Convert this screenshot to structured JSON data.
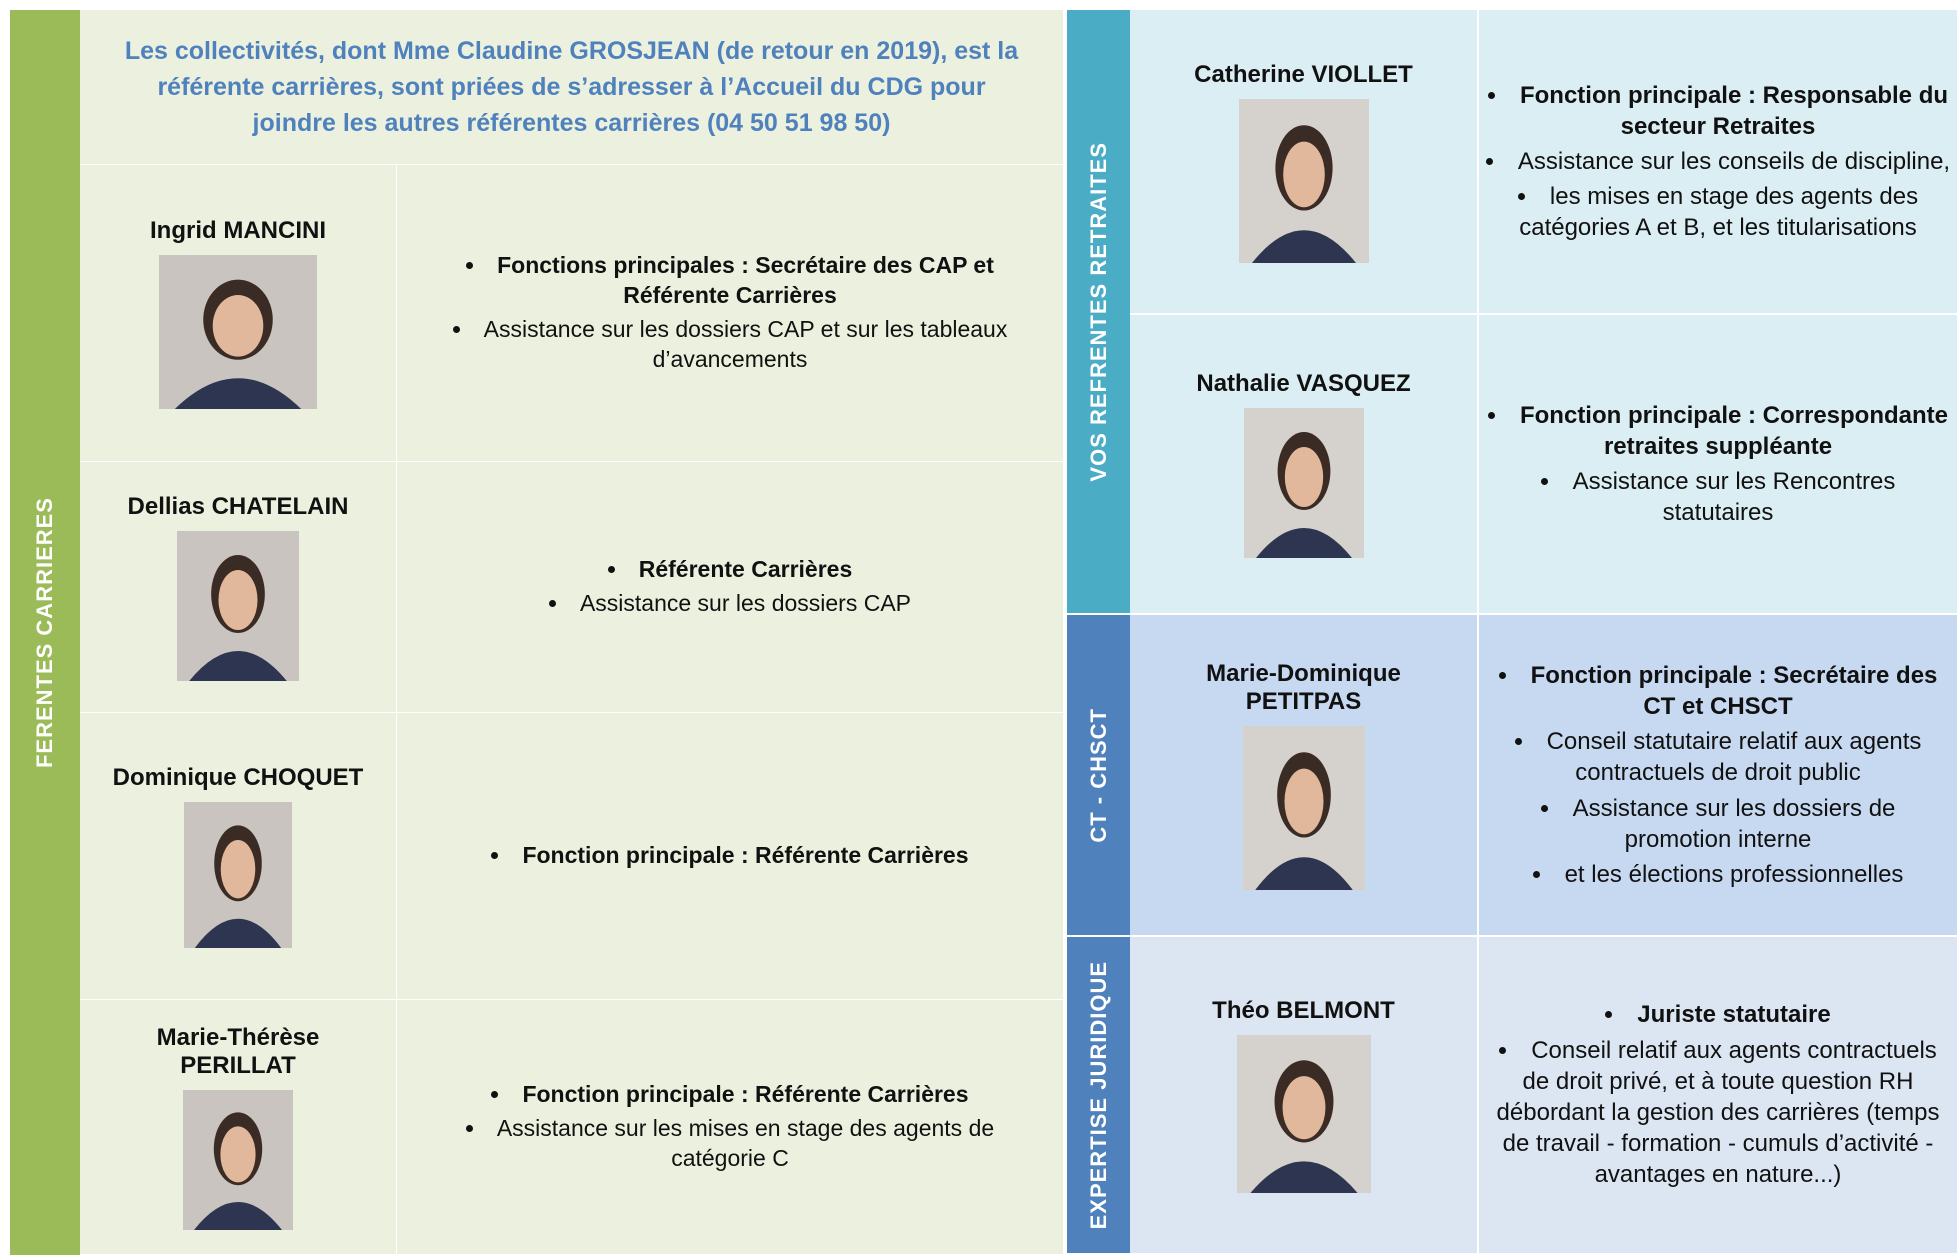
{
  "left": {
    "side_label": "FERENTES CARRIERES",
    "notice": "Les collectivités, dont Mme Claudine GROSJEAN (de retour en 2019), est la référente carrières, sont priées de s’adresser à l’Accueil du CDG pour joindre les autres référentes carrières (04 50 51 98 50)",
    "people": [
      {
        "name": "Ingrid MANCINI",
        "main": "Fonctions principales : Secrétaire des CAP et Référente Carrières",
        "details": [
          "Assistance sur les dossiers CAP et sur les tableaux d’avancements"
        ]
      },
      {
        "name": "Dellias CHATELAIN",
        "main": "Référente Carrières",
        "details": [
          "Assistance sur les dossiers CAP"
        ]
      },
      {
        "name": "Dominique CHOQUET",
        "main": "Fonction principale : Référente Carrières"
      },
      {
        "name": "Marie-Thérèse PERILLAT",
        "main": "Fonction principale : Référente Carrières",
        "details": [
          "Assistance sur les mises en stage des agents de catégorie C"
        ]
      }
    ]
  },
  "right": {
    "groups": [
      {
        "label": "VOS REFRENTES RETRAITES",
        "people": [
          {
            "name": "Catherine VIOLLET",
            "main": "Fonction principale : Responsable du secteur Retraites",
            "details": [
              "Assistance sur les conseils de discipline,",
              "les mises en stage des agents des catégories A et B, et les titularisations"
            ]
          },
          {
            "name": "Nathalie VASQUEZ",
            "main": "Fonction principale : Correspondante retraites suppléante",
            "details": [
              "Assistance sur les Rencontres statutaires"
            ]
          }
        ]
      },
      {
        "label": "CT - CHSCT",
        "people": [
          {
            "name": "Marie-Dominique PETITPAS",
            "main": "Fonction principale : Secrétaire des CT et CHSCT",
            "details": [
              "Conseil statutaire relatif aux agents contractuels de droit public",
              "Assistance sur les dossiers de promotion interne",
              "et les élections professionnelles"
            ]
          }
        ]
      },
      {
        "label": "EXPERTISE JURIDIQUE",
        "people": [
          {
            "name": "Théo BELMONT",
            "main": "Juriste statutaire",
            "details": [
              "Conseil relatif aux agents contractuels de droit privé, et à toute question RH débordant la gestion des carrières (temps de travail - formation - cumuls d’activité - avantages en nature...)"
            ]
          }
        ]
      }
    ]
  }
}
